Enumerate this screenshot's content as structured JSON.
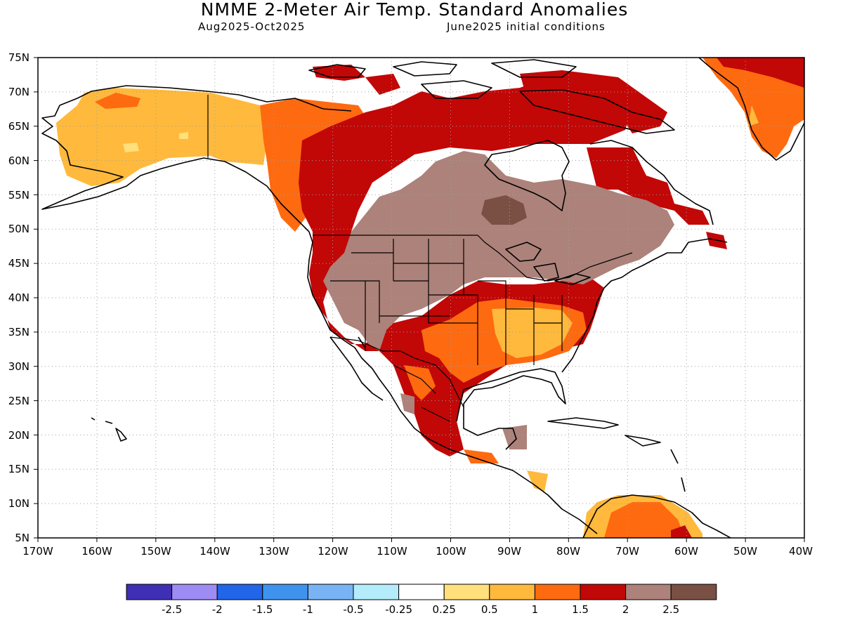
{
  "header": {
    "title": "NMME 2-Meter Air Temp. Standard Anomalies",
    "valid_period": "Aug2025-Oct2025",
    "initial_conditions": "June2025 initial conditions"
  },
  "map": {
    "region": "North America",
    "projection": "equirectangular",
    "lon_range": [
      -170,
      -40
    ],
    "lat_range": [
      5,
      75
    ],
    "gridlines": "dotted",
    "lat_labels": [
      "75N",
      "70N",
      "65N",
      "60N",
      "55N",
      "50N",
      "45N",
      "40N",
      "35N",
      "30N",
      "25N",
      "20N",
      "15N",
      "10N",
      "5N"
    ],
    "lon_labels": [
      "170W",
      "160W",
      "150W",
      "140W",
      "130W",
      "120W",
      "110W",
      "100W",
      "90W",
      "80W",
      "70W",
      "60W",
      "50W",
      "40W"
    ]
  },
  "colorbar": {
    "colors": [
      "#3f2fb5",
      "#9e8cf5",
      "#2165e8",
      "#3e93ee",
      "#78b4f5",
      "#b4ecfb",
      "#ffffff",
      "#ffe07a",
      "#ffb93c",
      "#fe6a10",
      "#c20707",
      "#ac827a",
      "#7a5044"
    ],
    "labels": [
      "-2.5",
      "-2",
      "-1.5",
      "-1",
      "-0.5",
      "-0.25",
      "0.25",
      "0.5",
      "1",
      "1.5",
      "2",
      "2.5"
    ]
  },
  "anomaly_regions": [
    {
      "name": "alaska-warm",
      "level": "0.5"
    },
    {
      "name": "yukon-warm",
      "level": "1"
    },
    {
      "name": "western-canada-hot",
      "level": "2"
    },
    {
      "name": "central-canada-very-hot",
      "level": "2.5"
    },
    {
      "name": "hudson-core",
      "level": "above 2.5"
    },
    {
      "name": "southeast-us-warm",
      "level": "1"
    },
    {
      "name": "greenland-warm",
      "level": "1.5"
    }
  ]
}
